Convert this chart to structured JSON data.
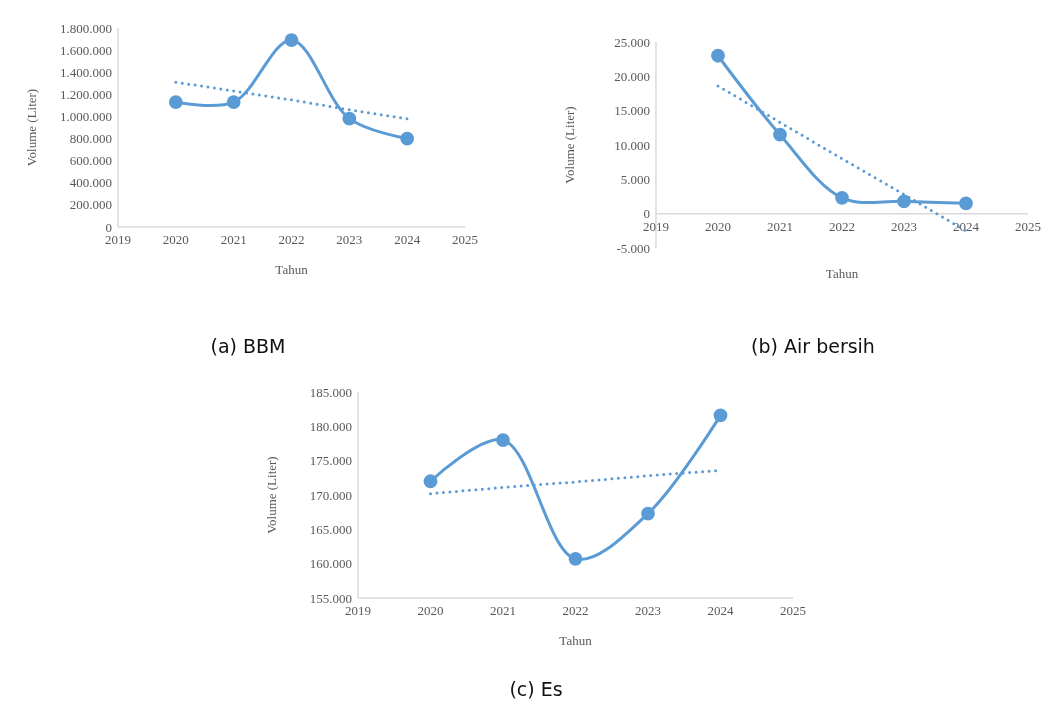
{
  "chart_data": [
    {
      "type": "line",
      "title": "(a) BBM",
      "xlabel": "Tahun",
      "ylabel": "Volume (Liter)",
      "xlim": [
        2019,
        2025
      ],
      "xticks": [
        2019,
        2020,
        2021,
        2022,
        2023,
        2024,
        2025
      ],
      "ylim": [
        0,
        1800000
      ],
      "yticks": [
        0,
        {
          "value": 200000,
          "label": "200.000"
        },
        {
          "value": 400000,
          "label": "400.000"
        },
        {
          "value": 600000,
          "label": "600.000"
        },
        {
          "value": 800000,
          "label": "800.000"
        },
        {
          "value": 1000000,
          "label": "1.000.000"
        },
        {
          "value": 1200000,
          "label": "1.200.000"
        },
        {
          "value": 1400000,
          "label": "1.400.000"
        },
        {
          "value": 1600000,
          "label": "1.600.000"
        },
        {
          "value": 1800000,
          "label": "1.800.000"
        }
      ],
      "grid": false,
      "marker": "circle",
      "line_style": "solid",
      "x": [
        2020,
        2021,
        2022,
        2023,
        2024
      ],
      "series": [
        {
          "color": "#5b9bd5",
          "values": [
            1130000,
            1130000,
            1690000,
            980000,
            800000
          ]
        },
        {
          "type": "line",
          "color": "#5b9bd5",
          "values": [
            1310000,
            1230000,
            1150000,
            1060000,
            980000
          ],
          "marker": "none",
          "line_style": "dotted"
        }
      ]
    },
    {
      "type": "line",
      "title": "(b) Air bersih",
      "xlabel": "Tahun",
      "ylabel": "Volume (Liter)",
      "xlim": [
        2019,
        2025
      ],
      "xticks": [
        2019,
        2020,
        2021,
        2022,
        2023,
        2024,
        2025
      ],
      "ylim": [
        -5000,
        25000
      ],
      "yticks": [
        {
          "value": -5000,
          "label": "-5.000"
        },
        0,
        {
          "value": 5000,
          "label": "5.000"
        },
        {
          "value": 10000,
          "label": "10.000"
        },
        {
          "value": 15000,
          "label": "15.000"
        },
        {
          "value": 20000,
          "label": "20.000"
        },
        {
          "value": 25000,
          "label": "25.000"
        }
      ],
      "grid": false,
      "marker": "circle",
      "line_style": "solid",
      "x": [
        2020,
        2021,
        2022,
        2023,
        2024
      ],
      "series": [
        {
          "color": "#5b9bd5",
          "values": [
            23000,
            11500,
            2300,
            1800,
            1500
          ]
        },
        {
          "type": "line",
          "color": "#5b9bd5",
          "values": [
            18600,
            13300,
            8000,
            2800,
            -2500
          ],
          "marker": "none",
          "line_style": "dotted"
        }
      ]
    },
    {
      "type": "line",
      "title": "(c) Es",
      "xlabel": "Tahun",
      "ylabel": "Volume (Liter)",
      "xlim": [
        2019,
        2025
      ],
      "xticks": [
        2019,
        2020,
        2021,
        2022,
        2023,
        2024,
        2025
      ],
      "ylim": [
        155000,
        185000
      ],
      "yticks": [
        {
          "value": 155000,
          "label": "155.000"
        },
        {
          "value": 160000,
          "label": "160.000"
        },
        {
          "value": 165000,
          "label": "165.000"
        },
        {
          "value": 170000,
          "label": "170.000"
        },
        {
          "value": 175000,
          "label": "175.000"
        },
        {
          "value": 180000,
          "label": "180.000"
        },
        {
          "value": 185000,
          "label": "185.000"
        }
      ],
      "grid": false,
      "marker": "circle",
      "line_style": "solid",
      "x": [
        2020,
        2021,
        2022,
        2023,
        2024
      ],
      "series": [
        {
          "color": "#5b9bd5",
          "values": [
            172000,
            178000,
            160700,
            167300,
            181600
          ]
        },
        {
          "type": "line",
          "color": "#5b9bd5",
          "values": [
            170200,
            171100,
            171900,
            172800,
            173600
          ],
          "marker": "none",
          "line_style": "dotted"
        }
      ]
    }
  ]
}
